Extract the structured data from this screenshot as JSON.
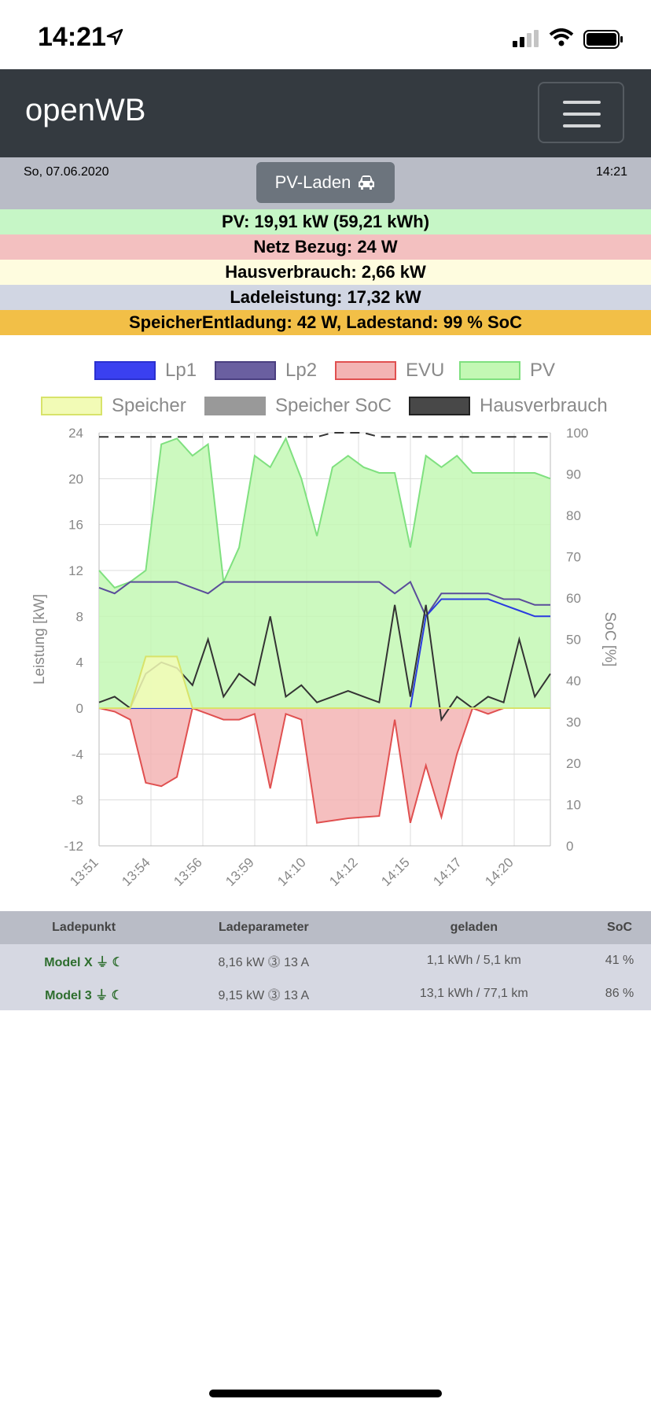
{
  "status_bar": {
    "time": "14:21"
  },
  "navbar": {
    "brand": "openWB"
  },
  "info": {
    "date": "So, 07.06.2020",
    "time": "14:21",
    "mode_button": "PV-Laden"
  },
  "summary": {
    "pv": "PV: 19,91 kW (59,21 kWh)",
    "netz": "Netz Bezug: 24 W",
    "haus": "Hausverbrauch: 2,66 kW",
    "lade": "Ladeleistung: 17,32 kW",
    "speicher": "SpeicherEntladung: 42 W, Ladestand: 99 % SoC"
  },
  "colors": {
    "pv_row": "#c6f6c6",
    "netz_row": "#f3c0c0",
    "haus_row": "#fefcdf",
    "lade_row": "#d1d6e3",
    "speicher_row": "#f2bf47"
  },
  "chart_data": {
    "type": "area",
    "legend": [
      "Lp1",
      "Lp2",
      "EVU",
      "PV",
      "Speicher",
      "Speicher SoC",
      "Hausverbrauch"
    ],
    "ylabel": "Leistung [kW]",
    "y2label": "SoC [%]",
    "ylim": [
      -12,
      24
    ],
    "y2lim": [
      0,
      100
    ],
    "yticks": [
      "24",
      "20",
      "16",
      "12",
      "8",
      "4",
      "0",
      "-4",
      "-8",
      "-12"
    ],
    "y2ticks": [
      "100",
      "90",
      "80",
      "70",
      "60",
      "50",
      "40",
      "30",
      "20",
      "10",
      "0"
    ],
    "xticks": [
      "13:51",
      "13:54",
      "13:56",
      "13:59",
      "14:10",
      "14:12",
      "14:15",
      "14:17",
      "14:20"
    ],
    "series": [
      {
        "name": "PV",
        "color": "#7fe07f",
        "fill": "#c3f8b4",
        "values": [
          12,
          10.5,
          11,
          12,
          23,
          23.5,
          22,
          23,
          11,
          14,
          22,
          21,
          23.5,
          20,
          15,
          21,
          22,
          21,
          20.5,
          20.5,
          14,
          22,
          21,
          22,
          20.5,
          20.5,
          20.5,
          20.5,
          20.5,
          20
        ]
      },
      {
        "name": "EVU",
        "color": "#e05050",
        "fill": "#f3b4b4",
        "values": [
          0,
          -0.3,
          -1,
          -6.5,
          -6.8,
          -6,
          0,
          -0.5,
          -1,
          -1,
          -0.5,
          -7,
          -0.5,
          -1,
          -10,
          -9.8,
          -9.6,
          -9.5,
          -9.4,
          -1,
          -10,
          -5,
          -9.5,
          -4,
          0,
          -0.5,
          0,
          0,
          0,
          0
        ]
      },
      {
        "name": "Lp2",
        "color": "#5a4d9a",
        "values": [
          10.5,
          10,
          11,
          11,
          11,
          11,
          10.5,
          10,
          11,
          11,
          11,
          11,
          11,
          11,
          11,
          11,
          11,
          11,
          11,
          10,
          11,
          8,
          10,
          10,
          10,
          10,
          9.5,
          9.5,
          9,
          9
        ]
      },
      {
        "name": "Lp1",
        "color": "#2a3be0",
        "values": [
          0,
          0,
          0,
          0,
          0,
          0,
          0,
          0,
          0,
          0,
          0,
          0,
          0,
          0,
          0,
          0,
          0,
          0,
          0,
          0,
          0,
          8,
          9.5,
          9.5,
          9.5,
          9.5,
          9,
          8.5,
          8,
          8
        ]
      },
      {
        "name": "Hausverbrauch",
        "color": "#333333",
        "values": [
          0.5,
          1,
          0,
          3,
          4,
          3.5,
          2,
          6,
          1,
          3,
          2,
          8,
          1,
          2,
          0.5,
          1,
          1.5,
          1,
          0.5,
          9,
          1,
          9,
          -1,
          1,
          0,
          1,
          0.5,
          6,
          1,
          3
        ]
      },
      {
        "name": "Speicher",
        "color": "#d8e36a",
        "fill": "#f2fbb6",
        "values": [
          0,
          0,
          0,
          4.5,
          4.5,
          4.5,
          0,
          0,
          0,
          0,
          0,
          0,
          0,
          0,
          0,
          0,
          0,
          0,
          0,
          0,
          0,
          0,
          0,
          0,
          0,
          0,
          0,
          0,
          0,
          0
        ]
      },
      {
        "name": "Speicher SoC",
        "color": "#333333",
        "dash": true,
        "values": [
          99,
          99,
          99,
          99,
          99,
          99,
          99,
          99,
          99,
          99,
          99,
          99,
          99,
          99,
          99,
          100,
          100,
          100,
          99,
          99,
          99,
          99,
          99,
          99,
          99,
          99,
          99,
          99,
          99,
          99
        ]
      }
    ]
  },
  "table": {
    "headers": [
      "Ladepunkt",
      "Ladeparameter",
      "geladen",
      "SoC"
    ],
    "rows": [
      {
        "name": "Model X",
        "param": "8,16 kW ⓷ 13 A",
        "geladen": "1,1 kWh / 5,1 km",
        "soc": "41 %"
      },
      {
        "name": "Model 3",
        "param": "9,15 kW ⓷ 13 A",
        "geladen": "13,1 kWh / 77,1 km",
        "soc": "86 %"
      }
    ]
  }
}
